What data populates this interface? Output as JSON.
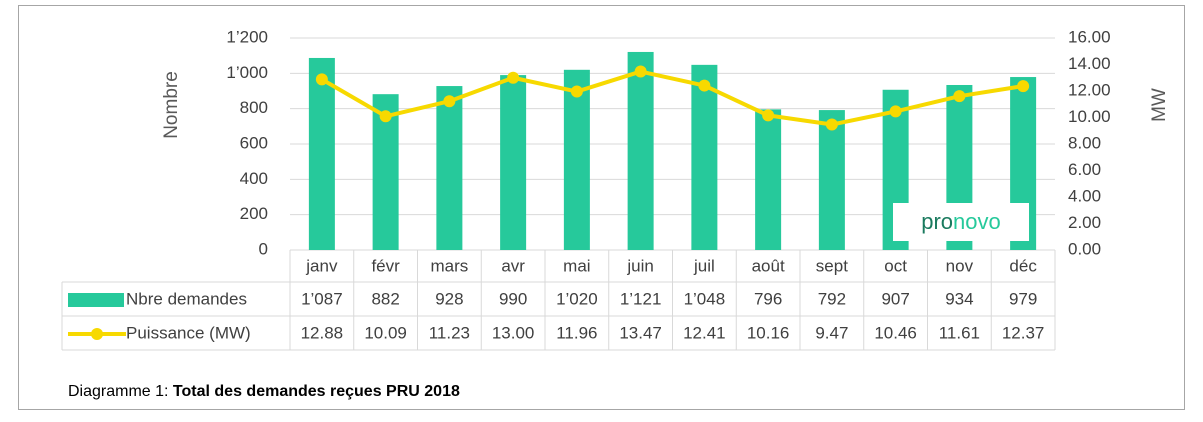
{
  "chart_data": {
    "type": "bar",
    "categories": [
      "janv",
      "févr",
      "mars",
      "avr",
      "mai",
      "juin",
      "juil",
      "août",
      "sept",
      "oct",
      "nov",
      "déc"
    ],
    "series": [
      {
        "name": "Nbre demandes",
        "type": "bar",
        "color": "#26c99b",
        "values": [
          1087,
          882,
          928,
          990,
          1020,
          1121,
          1048,
          796,
          792,
          907,
          934,
          979
        ],
        "value_labels": [
          "1’087",
          "882",
          "928",
          "990",
          "1’020",
          "1’121",
          "1’048",
          "796",
          "792",
          "907",
          "934",
          "979"
        ]
      },
      {
        "name": "Puissance (MW)",
        "type": "line",
        "axis": "y2",
        "color": "#f7d900",
        "values": [
          12.88,
          10.09,
          11.23,
          13.0,
          11.96,
          13.47,
          12.41,
          10.16,
          9.47,
          10.46,
          11.61,
          12.37
        ],
        "value_labels": [
          "12.88",
          "10.09",
          "11.23",
          "13.00",
          "11.96",
          "13.47",
          "12.41",
          "10.16",
          "9.47",
          "10.46",
          "11.61",
          "12.37"
        ]
      }
    ],
    "y_label": "Nombre",
    "y2_label": "MW",
    "ylim": [
      0,
      1200
    ],
    "yticks": [
      0,
      200,
      400,
      600,
      800,
      {
        "value": 1000,
        "label": "1’000"
      },
      {
        "value": 1200,
        "label": "1’200"
      }
    ],
    "y2lim": [
      0,
      16
    ],
    "y2ticks": [
      {
        "value": 0,
        "label": "0.00"
      },
      {
        "value": 2,
        "label": "2.00"
      },
      {
        "value": 4,
        "label": "4.00"
      },
      {
        "value": 6,
        "label": "6.00"
      },
      {
        "value": 8,
        "label": "8.00"
      },
      {
        "value": 10,
        "label": "10.00"
      },
      {
        "value": 12,
        "label": "12.00"
      },
      {
        "value": 14,
        "label": "14.00"
      },
      {
        "value": 16,
        "label": "16.00"
      }
    ],
    "grid": true,
    "logo": [
      "pro",
      "novo"
    ],
    "caption": {
      "prefix": "Diagramme 1: ",
      "title": "Total des demandes reçues PRU 2018"
    }
  }
}
